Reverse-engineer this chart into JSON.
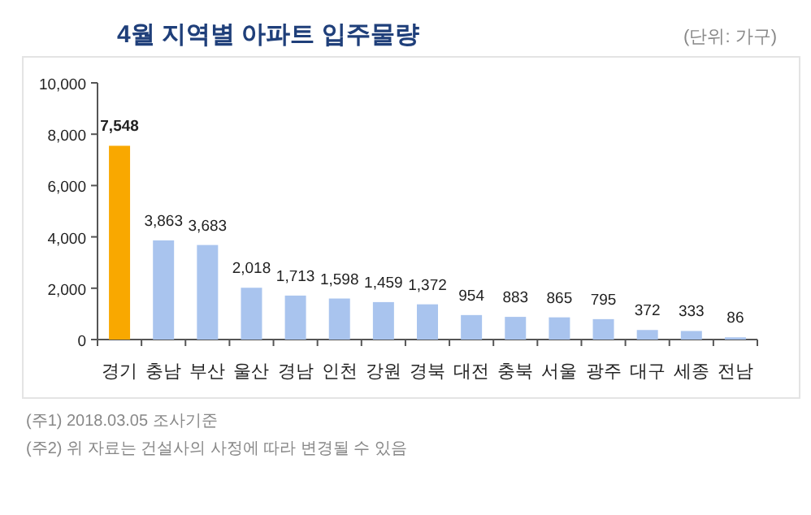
{
  "chart_data": {
    "type": "bar",
    "title": "4월 지역별 아파트 입주물량",
    "subtitle": "(단위: 가구)",
    "categories": [
      "경기",
      "충남",
      "부산",
      "울산",
      "경남",
      "인천",
      "강원",
      "경북",
      "대전",
      "충북",
      "서울",
      "광주",
      "대구",
      "세종",
      "전남"
    ],
    "values": [
      7548,
      3863,
      3683,
      2018,
      1713,
      1598,
      1459,
      1372,
      954,
      883,
      865,
      795,
      372,
      333,
      86
    ],
    "value_labels": [
      "7,548",
      "3,863",
      "3,683",
      "2,018",
      "1,713",
      "1,598",
      "1,459",
      "1,372",
      "954",
      "883",
      "865",
      "795",
      "372",
      "333",
      "86"
    ],
    "colors": [
      "#f9a800",
      "#a9c4ee",
      "#a9c4ee",
      "#a9c4ee",
      "#a9c4ee",
      "#a9c4ee",
      "#a9c4ee",
      "#a9c4ee",
      "#a9c4ee",
      "#a9c4ee",
      "#a9c4ee",
      "#a9c4ee",
      "#a9c4ee",
      "#a9c4ee",
      "#a9c4ee"
    ],
    "ylim": [
      0,
      10000
    ],
    "yticks": [
      0,
      {
        "value": 2000,
        "label": "2,000"
      },
      {
        "value": 4000,
        "label": "4,000"
      },
      {
        "value": 6000,
        "label": "6,000"
      },
      {
        "value": 8000,
        "label": "8,000"
      },
      {
        "value": 10000,
        "label": "10,000"
      }
    ],
    "annotations": [
      "(주1) 2018.03.05 조사기준",
      "(주2) 위 자료는 건설사의 사정에 따라 변경될 수 있음"
    ]
  }
}
